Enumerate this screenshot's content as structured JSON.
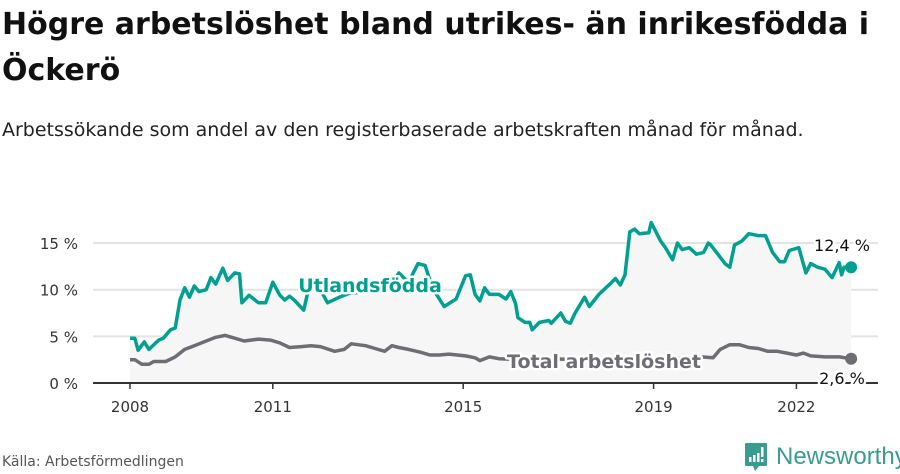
{
  "title": "Högre arbetslöshet bland utrikes- än inrikesfödda i Öckerö",
  "subtitle": "Arbetssökande som andel av den registerbaserade arbetskraften månad för månad.",
  "source": "Källa: Arbetsförmedlingen",
  "brand": "Newsworthy",
  "colors": {
    "foreign": "#00a090",
    "total": "#6e6d73",
    "fill": "#f6f6f6",
    "grid": "#e3e3e3",
    "brand": "#3a9b90"
  },
  "chart_data": {
    "type": "line",
    "title": "Högre arbetslöshet bland utrikes- än inrikesfödda i Öckerö",
    "xlabel": "",
    "ylabel": "",
    "xlim": [
      2008,
      2023.15
    ],
    "ylim": [
      0,
      15
    ],
    "x_ticks": [
      {
        "value": 2008,
        "label": "2008"
      },
      {
        "value": 2011,
        "label": "2011"
      },
      {
        "value": 2015,
        "label": "2015"
      },
      {
        "value": 2019,
        "label": "2019"
      },
      {
        "value": 2022,
        "label": "2022"
      }
    ],
    "y_ticks": [
      {
        "value": 0,
        "label": "0 %"
      },
      {
        "value": 5,
        "label": "5 %"
      },
      {
        "value": 10,
        "label": "10 %"
      },
      {
        "value": 15,
        "label": "15 %"
      }
    ],
    "grid": true,
    "series": [
      {
        "name": "Utlandsfödda",
        "end_label": "12,4 %",
        "points": [
          [
            2008.0,
            4.8
          ],
          [
            2008.1,
            4.8
          ],
          [
            2008.17,
            3.5
          ],
          [
            2008.3,
            4.4
          ],
          [
            2008.4,
            3.6
          ],
          [
            2008.5,
            4.1
          ],
          [
            2008.6,
            4.6
          ],
          [
            2008.7,
            4.8
          ],
          [
            2008.85,
            5.7
          ],
          [
            2008.95,
            5.9
          ],
          [
            2009.05,
            8.9
          ],
          [
            2009.15,
            10.2
          ],
          [
            2009.25,
            9.2
          ],
          [
            2009.35,
            10.4
          ],
          [
            2009.45,
            9.8
          ],
          [
            2009.6,
            10
          ],
          [
            2009.7,
            11.3
          ],
          [
            2009.8,
            10.6
          ],
          [
            2009.95,
            12.3
          ],
          [
            2010.05,
            11
          ],
          [
            2010.2,
            11.8
          ],
          [
            2010.3,
            11.7
          ],
          [
            2010.35,
            8.6
          ],
          [
            2010.5,
            9.4
          ],
          [
            2010.7,
            8.6
          ],
          [
            2010.85,
            8.6
          ],
          [
            2011.0,
            10.8
          ],
          [
            2011.15,
            9.4
          ],
          [
            2011.25,
            8.9
          ],
          [
            2011.35,
            9.3
          ],
          [
            2011.45,
            8.9
          ],
          [
            2011.65,
            7.8
          ],
          [
            2011.8,
            11.2
          ],
          [
            2011.95,
            10.5
          ],
          [
            2012.15,
            8.6
          ],
          [
            2012.4,
            9.2
          ],
          [
            2012.6,
            9.6
          ],
          [
            2012.95,
            9.8
          ],
          [
            2013.25,
            10.3
          ],
          [
            2013.5,
            10.5
          ],
          [
            2013.65,
            11.8
          ],
          [
            2013.85,
            10.8
          ],
          [
            2014.05,
            12.8
          ],
          [
            2014.2,
            12.6
          ],
          [
            2014.35,
            10.2
          ],
          [
            2014.5,
            9.0
          ],
          [
            2014.6,
            8.2
          ],
          [
            2014.85,
            9
          ],
          [
            2015.05,
            11.5
          ],
          [
            2015.15,
            11.6
          ],
          [
            2015.25,
            9.5
          ],
          [
            2015.35,
            8.8
          ],
          [
            2015.45,
            10.2
          ],
          [
            2015.55,
            9.5
          ],
          [
            2015.75,
            9.5
          ],
          [
            2015.9,
            9
          ],
          [
            2016.0,
            9.8
          ],
          [
            2016.1,
            8.5
          ],
          [
            2016.15,
            7
          ],
          [
            2016.3,
            6.5
          ],
          [
            2016.4,
            6.5
          ],
          [
            2016.45,
            5.7
          ],
          [
            2016.6,
            6.5
          ],
          [
            2016.8,
            6.7
          ],
          [
            2016.85,
            6.4
          ],
          [
            2017.05,
            7.5
          ],
          [
            2017.15,
            6.6
          ],
          [
            2017.25,
            6.4
          ],
          [
            2017.35,
            7.5
          ],
          [
            2017.55,
            9.2
          ],
          [
            2017.65,
            8.2
          ],
          [
            2017.85,
            9.5
          ],
          [
            2018.1,
            10.7
          ],
          [
            2018.2,
            11.2
          ],
          [
            2018.3,
            10.5
          ],
          [
            2018.4,
            11.6
          ],
          [
            2018.5,
            16.2
          ],
          [
            2018.6,
            16.5
          ],
          [
            2018.7,
            16.0
          ],
          [
            2018.9,
            16.1
          ],
          [
            2018.95,
            17.2
          ],
          [
            2019.15,
            15.2
          ],
          [
            2019.25,
            14.5
          ],
          [
            2019.4,
            13.2
          ],
          [
            2019.5,
            15
          ],
          [
            2019.6,
            14.3
          ],
          [
            2019.75,
            14.5
          ],
          [
            2019.9,
            13.8
          ],
          [
            2020.05,
            14
          ],
          [
            2020.15,
            15
          ],
          [
            2020.2,
            14.8
          ],
          [
            2020.35,
            13.8
          ],
          [
            2020.5,
            12.8
          ],
          [
            2020.6,
            12.4
          ],
          [
            2020.7,
            14.8
          ],
          [
            2020.85,
            15.2
          ],
          [
            2021.0,
            16
          ],
          [
            2021.2,
            15.8
          ],
          [
            2021.35,
            15.8
          ],
          [
            2021.5,
            14
          ],
          [
            2021.65,
            13
          ],
          [
            2021.75,
            13
          ],
          [
            2021.85,
            14.2
          ],
          [
            2022.05,
            14.5
          ],
          [
            2022.2,
            11.8
          ],
          [
            2022.3,
            12.8
          ],
          [
            2022.45,
            12.4
          ],
          [
            2022.6,
            12.2
          ],
          [
            2022.75,
            11.3
          ],
          [
            2022.9,
            12.9
          ],
          [
            2022.95,
            11.6
          ],
          [
            2023.0,
            12.4
          ],
          [
            2023.15,
            12.4
          ]
        ]
      },
      {
        "name": "Total arbetslöshet",
        "end_label": "2,6 %",
        "points": [
          [
            2008.0,
            2.5
          ],
          [
            2008.1,
            2.5
          ],
          [
            2008.25,
            2.0
          ],
          [
            2008.4,
            2.0
          ],
          [
            2008.5,
            2.3
          ],
          [
            2008.75,
            2.3
          ],
          [
            2008.95,
            2.8
          ],
          [
            2009.15,
            3.6
          ],
          [
            2009.35,
            4.0
          ],
          [
            2009.6,
            4.5
          ],
          [
            2009.8,
            4.9
          ],
          [
            2010.0,
            5.1
          ],
          [
            2010.2,
            4.8
          ],
          [
            2010.4,
            4.5
          ],
          [
            2010.7,
            4.7
          ],
          [
            2010.95,
            4.6
          ],
          [
            2011.15,
            4.3
          ],
          [
            2011.35,
            3.8
          ],
          [
            2011.6,
            3.9
          ],
          [
            2011.8,
            4.0
          ],
          [
            2012.0,
            3.9
          ],
          [
            2012.3,
            3.4
          ],
          [
            2012.5,
            3.6
          ],
          [
            2012.65,
            4.2
          ],
          [
            2012.95,
            4.0
          ],
          [
            2013.15,
            3.7
          ],
          [
            2013.35,
            3.4
          ],
          [
            2013.5,
            4.0
          ],
          [
            2013.65,
            3.8
          ],
          [
            2013.85,
            3.6
          ],
          [
            2014.1,
            3.3
          ],
          [
            2014.3,
            3.0
          ],
          [
            2014.5,
            3.0
          ],
          [
            2014.7,
            3.1
          ],
          [
            2015.05,
            2.9
          ],
          [
            2015.25,
            2.7
          ],
          [
            2015.35,
            2.4
          ],
          [
            2015.55,
            2.8
          ],
          [
            2015.75,
            2.6
          ],
          [
            2016.2,
            2.5
          ],
          [
            2016.8,
            2.6
          ],
          [
            2017.5,
            2.5
          ],
          [
            2018.2,
            2.4
          ],
          [
            2018.8,
            2.5
          ],
          [
            2019.5,
            2.6
          ],
          [
            2020.0,
            2.8
          ],
          [
            2020.25,
            2.7
          ],
          [
            2020.4,
            3.6
          ],
          [
            2020.6,
            4.1
          ],
          [
            2020.8,
            4.1
          ],
          [
            2021.0,
            3.8
          ],
          [
            2021.2,
            3.7
          ],
          [
            2021.4,
            3.4
          ],
          [
            2021.6,
            3.4
          ],
          [
            2021.8,
            3.2
          ],
          [
            2022.0,
            3.0
          ],
          [
            2022.15,
            3.2
          ],
          [
            2022.3,
            2.9
          ],
          [
            2022.6,
            2.8
          ],
          [
            2022.9,
            2.8
          ],
          [
            2023.15,
            2.6
          ]
        ]
      }
    ]
  }
}
